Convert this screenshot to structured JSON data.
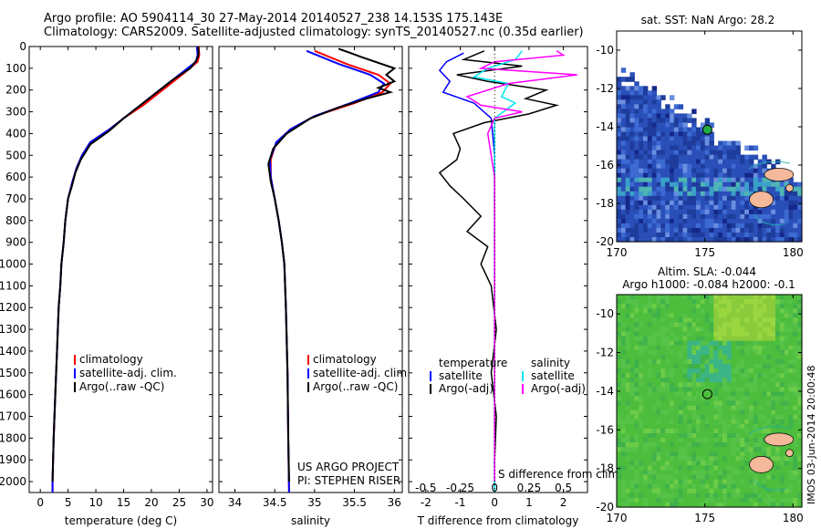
{
  "header": {
    "line1": "Argo profile: AO 5904114_30 27-May-2014 20140527_238 14.153S 175.143E",
    "line2": "Climatology: CARS2009. Satellite-adjusted climatology: synTS_20140527.nc (0.35d earlier)"
  },
  "colors": {
    "climatology": "#ff0000",
    "satellite": "#0000ff",
    "argo": "#000000",
    "sat_salinity": "#00e5ee",
    "argo_salinity": "#ff00ff"
  },
  "chart_data": [
    {
      "id": "temperature",
      "type": "line",
      "xlabel": "temperature (deg C)",
      "ylabel": "",
      "xlim": [
        -2,
        31
      ],
      "ylim": [
        2050,
        0
      ],
      "xticks": [
        0,
        5,
        10,
        15,
        20,
        25,
        30
      ],
      "yticks": [
        0,
        100,
        200,
        300,
        400,
        500,
        600,
        700,
        800,
        900,
        1000,
        1100,
        1200,
        1300,
        1400,
        1500,
        1600,
        1700,
        1800,
        1900,
        2000
      ],
      "legend": [
        "climatology",
        "satellite-adj. clim.",
        "Argo(..raw -QC)"
      ],
      "series": [
        {
          "name": "climatology",
          "color": "#ff0000",
          "points": [
            [
              28.5,
              0
            ],
            [
              28.6,
              40
            ],
            [
              28.3,
              70
            ],
            [
              26,
              120
            ],
            [
              22,
              200
            ],
            [
              18.5,
              270
            ],
            [
              15,
              330
            ],
            [
              12.5,
              380
            ],
            [
              9,
              440
            ],
            [
              7.5,
              500
            ],
            [
              6.5,
              560
            ],
            [
              5.8,
              620
            ],
            [
              5,
              700
            ],
            [
              4.5,
              800
            ],
            [
              4.2,
              900
            ],
            [
              3.8,
              1000
            ],
            [
              3.6,
              1100
            ],
            [
              3.3,
              1200
            ],
            [
              3,
              1400
            ],
            [
              2.7,
              1600
            ],
            [
              2.4,
              1800
            ],
            [
              2.2,
              2000
            ],
            [
              2.2,
              2050
            ]
          ]
        },
        {
          "name": "satellite-adj. clim.",
          "color": "#0000ff",
          "points": [
            [
              28.2,
              0
            ],
            [
              28.3,
              40
            ],
            [
              28,
              70
            ],
            [
              25.5,
              120
            ],
            [
              21.5,
              200
            ],
            [
              18,
              270
            ],
            [
              15,
              330
            ],
            [
              12.5,
              380
            ],
            [
              9,
              440
            ],
            [
              7.5,
              500
            ],
            [
              6.5,
              560
            ],
            [
              5.8,
              620
            ],
            [
              5,
              700
            ],
            [
              4.5,
              800
            ],
            [
              4.2,
              900
            ],
            [
              3.8,
              1000
            ],
            [
              3.6,
              1100
            ],
            [
              3.3,
              1200
            ],
            [
              3,
              1400
            ],
            [
              2.7,
              1600
            ],
            [
              2.4,
              1800
            ],
            [
              2.2,
              2000
            ],
            [
              2.2,
              2050
            ]
          ]
        },
        {
          "name": "Argo(..raw -QC)",
          "color": "#000000",
          "points": [
            [
              28.4,
              0
            ],
            [
              28.5,
              30
            ],
            [
              28.2,
              60
            ],
            [
              27,
              100
            ],
            [
              24,
              150
            ],
            [
              21.5,
              200
            ],
            [
              18.5,
              260
            ],
            [
              15,
              330
            ],
            [
              12.3,
              390
            ],
            [
              9,
              450
            ],
            [
              7.3,
              520
            ],
            [
              6.3,
              580
            ],
            [
              5.7,
              640
            ],
            [
              5,
              700
            ],
            [
              4.5,
              800
            ],
            [
              4.2,
              900
            ],
            [
              3.8,
              1000
            ],
            [
              3.6,
              1100
            ],
            [
              3.3,
              1200
            ],
            [
              3,
              1400
            ],
            [
              2.7,
              1600
            ],
            [
              2.4,
              1800
            ],
            [
              2.2,
              2000
            ]
          ]
        }
      ]
    },
    {
      "id": "salinity",
      "type": "line",
      "xlabel": "salinity",
      "xlim": [
        33.8,
        36.1
      ],
      "ylim": [
        2050,
        0
      ],
      "xticks": [
        34,
        34.5,
        35,
        35.5,
        36
      ],
      "legend": [
        "climatology",
        "satellite-adj. clim.",
        "Argo(..raw -QC)"
      ],
      "series": [
        {
          "name": "climatology",
          "color": "#ff0000",
          "points": [
            [
              35.0,
              20
            ],
            [
              35.4,
              80
            ],
            [
              35.8,
              130
            ],
            [
              35.95,
              170
            ],
            [
              35.85,
              210
            ],
            [
              35.5,
              260
            ],
            [
              35.0,
              320
            ],
            [
              34.7,
              380
            ],
            [
              34.52,
              440
            ],
            [
              34.45,
              520
            ],
            [
              34.45,
              600
            ],
            [
              34.5,
              700
            ],
            [
              34.55,
              800
            ],
            [
              34.59,
              900
            ],
            [
              34.62,
              1000
            ],
            [
              34.64,
              1200
            ],
            [
              34.66,
              1500
            ],
            [
              34.67,
              1800
            ],
            [
              34.68,
              2050
            ]
          ]
        },
        {
          "name": "satellite-adj. clim.",
          "color": "#0000ff",
          "points": [
            [
              34.9,
              20
            ],
            [
              35.3,
              80
            ],
            [
              35.7,
              130
            ],
            [
              35.87,
              170
            ],
            [
              35.8,
              210
            ],
            [
              35.45,
              260
            ],
            [
              35.0,
              320
            ],
            [
              34.7,
              380
            ],
            [
              34.52,
              440
            ],
            [
              34.44,
              520
            ],
            [
              34.45,
              600
            ],
            [
              34.5,
              700
            ],
            [
              34.55,
              800
            ],
            [
              34.59,
              900
            ],
            [
              34.62,
              1000
            ],
            [
              34.64,
              1200
            ],
            [
              34.66,
              1500
            ],
            [
              34.67,
              1800
            ],
            [
              34.68,
              2050
            ]
          ]
        },
        {
          "name": "Argo(..raw -QC)",
          "color": "#000000",
          "points": [
            [
              35.3,
              10
            ],
            [
              35.6,
              50
            ],
            [
              36.0,
              100
            ],
            [
              35.9,
              130
            ],
            [
              36.0,
              160
            ],
            [
              35.8,
              190
            ],
            [
              35.95,
              210
            ],
            [
              35.65,
              240
            ],
            [
              35.3,
              280
            ],
            [
              34.95,
              330
            ],
            [
              34.65,
              400
            ],
            [
              34.48,
              470
            ],
            [
              34.42,
              540
            ],
            [
              34.45,
              620
            ],
            [
              34.5,
              700
            ],
            [
              34.55,
              800
            ],
            [
              34.59,
              900
            ],
            [
              34.62,
              1000
            ],
            [
              34.64,
              1200
            ],
            [
              34.66,
              1500
            ],
            [
              34.67,
              1800
            ],
            [
              34.68,
              2000
            ]
          ]
        }
      ],
      "annotations": [
        "US ARGO PROJECT",
        "PI: STEPHEN RISER"
      ]
    },
    {
      "id": "difference",
      "type": "line",
      "xlabel_bottom": "T difference from climatology",
      "xlabel_top": "S difference from climatology",
      "xlim_T": [
        -2.5,
        2.7
      ],
      "xticks_T": [
        -2,
        -1,
        0,
        1,
        2
      ],
      "xticks_S": [
        -0.5,
        -0.25,
        0,
        0.25,
        0.5
      ],
      "ylim": [
        2050,
        0
      ],
      "legend_headers": [
        "temperature",
        "salinity"
      ],
      "legend": [
        "satellite",
        "Argo(-adj)",
        "satellite",
        "Argo(-adj)"
      ],
      "series": [
        {
          "name": "temperature satellite",
          "color": "#0000ff",
          "points": [
            [
              -0.9,
              30
            ],
            [
              -1.4,
              70
            ],
            [
              -1.6,
              110
            ],
            [
              -1.3,
              160
            ],
            [
              -1.5,
              210
            ],
            [
              -0.6,
              260
            ],
            [
              -0.1,
              330
            ],
            [
              0,
              500
            ],
            [
              0,
              2050
            ]
          ]
        },
        {
          "name": "temperature Argo(-adj)",
          "color": "#000000",
          "points": [
            [
              -0.3,
              20
            ],
            [
              -0.9,
              60
            ],
            [
              0.8,
              90
            ],
            [
              -1.1,
              130
            ],
            [
              -0.2,
              160
            ],
            [
              1.5,
              200
            ],
            [
              0.9,
              240
            ],
            [
              1.8,
              270
            ],
            [
              1.0,
              310
            ],
            [
              -0.3,
              350
            ],
            [
              -1.2,
              400
            ],
            [
              -1.0,
              470
            ],
            [
              -1.1,
              520
            ],
            [
              -1.6,
              580
            ],
            [
              -1.3,
              640
            ],
            [
              -0.9,
              700
            ],
            [
              -0.4,
              780
            ],
            [
              -0.8,
              850
            ],
            [
              -0.2,
              920
            ],
            [
              -0.4,
              1000
            ],
            [
              -0.1,
              1100
            ],
            [
              0.05,
              1300
            ],
            [
              -0.1,
              1500
            ],
            [
              0.05,
              1700
            ],
            [
              0,
              1900
            ],
            [
              0,
              2000
            ]
          ]
        },
        {
          "name": "salinity satellite",
          "color": "#00e5ee",
          "points": [
            [
              0.2,
              20
            ],
            [
              0.15,
              60
            ],
            [
              -0.05,
              100
            ],
            [
              -0.15,
              140
            ],
            [
              0.1,
              170
            ],
            [
              0.05,
              230
            ],
            [
              0.15,
              260
            ],
            [
              0,
              330
            ],
            [
              0,
              2050
            ]
          ]
        },
        {
          "name": "salinity Argo(-adj)",
          "color": "#ff00ff",
          "points": [
            [
              0.45,
              20
            ],
            [
              0.5,
              40
            ],
            [
              0,
              70
            ],
            [
              -0.1,
              100
            ],
            [
              0.6,
              130
            ],
            [
              0.1,
              170
            ],
            [
              -0.2,
              230
            ],
            [
              -0.1,
              270
            ],
            [
              0.2,
              300
            ],
            [
              0,
              330
            ],
            [
              -0.05,
              400
            ],
            [
              0,
              600
            ],
            [
              0,
              2000
            ]
          ]
        }
      ]
    },
    {
      "id": "sst_map",
      "type": "heatmap",
      "title": "sat. SST: NaN Argo: 28.2",
      "xlim": [
        170,
        180.5
      ],
      "ylim": [
        -20,
        -9
      ],
      "xticks": [
        170,
        175,
        180
      ],
      "yticks": [
        -10,
        -12,
        -14,
        -16,
        -18,
        -20
      ],
      "marker": {
        "lon": 175.143,
        "lat": -14.153,
        "color": "#22aa44"
      }
    },
    {
      "id": "sla_map",
      "type": "heatmap",
      "title": "Altim. SLA: -0.044",
      "subtitle": "Argo h1000: -0.084 h2000: -0.1",
      "xlim": [
        170,
        180.5
      ],
      "ylim": [
        -20,
        -9
      ],
      "xticks": [
        170,
        175,
        180
      ],
      "yticks": [
        -10,
        -12,
        -14,
        -16,
        -18,
        -20
      ],
      "marker": {
        "lon": 175.143,
        "lat": -14.153
      }
    }
  ],
  "side_label": "IMOS 03-Jun-2014 20:00:48"
}
